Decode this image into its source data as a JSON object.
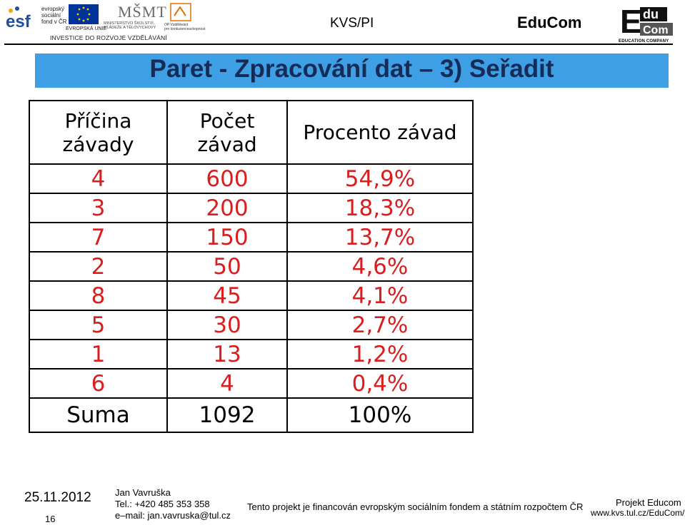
{
  "header": {
    "esf_logo_text": "esf",
    "esf_lines": [
      "evropský",
      "sociální",
      "fond v ČR"
    ],
    "eu_label": "EVROPSKÁ UNIE",
    "msmt_logo_text": "MŠMT",
    "msmt_label": [
      "MINISTERSTVO ŠKOLSTVÍ,",
      "MLÁDEŽE A TĚLOVÝCHOVY"
    ],
    "op_label": [
      "OP Vzdělávání",
      "pro konkurenceschopnost"
    ],
    "investice": "INVESTICE DO ROZVOJE VZDĚLÁVÁNÍ",
    "kvs": "KVS/PI",
    "educom": "EduCom",
    "educom_logo": [
      "E",
      "du",
      "Com"
    ],
    "education_company": "EDUCATION COMPANY"
  },
  "title": "Paret - Zpracování dat – 3) Seřadit",
  "table": {
    "headers": [
      "Příčina závady",
      "Počet závad",
      "Procento závad"
    ],
    "rows": [
      [
        "4",
        "600",
        "54,9%"
      ],
      [
        "3",
        "200",
        "18,3%"
      ],
      [
        "7",
        "150",
        "13,7%"
      ],
      [
        "2",
        "50",
        "4,6%"
      ],
      [
        "8",
        "45",
        "4,1%"
      ],
      [
        "5",
        "30",
        "2,7%"
      ],
      [
        "1",
        "13",
        "1,2%"
      ],
      [
        "6",
        "4",
        "0,4%"
      ]
    ],
    "sum": [
      "Suma",
      "1092",
      "100%"
    ]
  },
  "colors": {
    "title_bar": "#3f9fe4",
    "value_red": "#d81e1e"
  },
  "footer": {
    "date": "25.11.2012",
    "page": "16",
    "author_name": "Jan Vavruška",
    "author_tel": "Tel.: +420 485 353 358",
    "author_email": "e–mail: jan.vavruska@tul.cz",
    "funding_note": "Tento projekt je financován evropským sociálním fondem a státním rozpočtem ČR",
    "project": "Projekt Educom",
    "url": "www.kvs.tul.cz/EduCom/"
  }
}
